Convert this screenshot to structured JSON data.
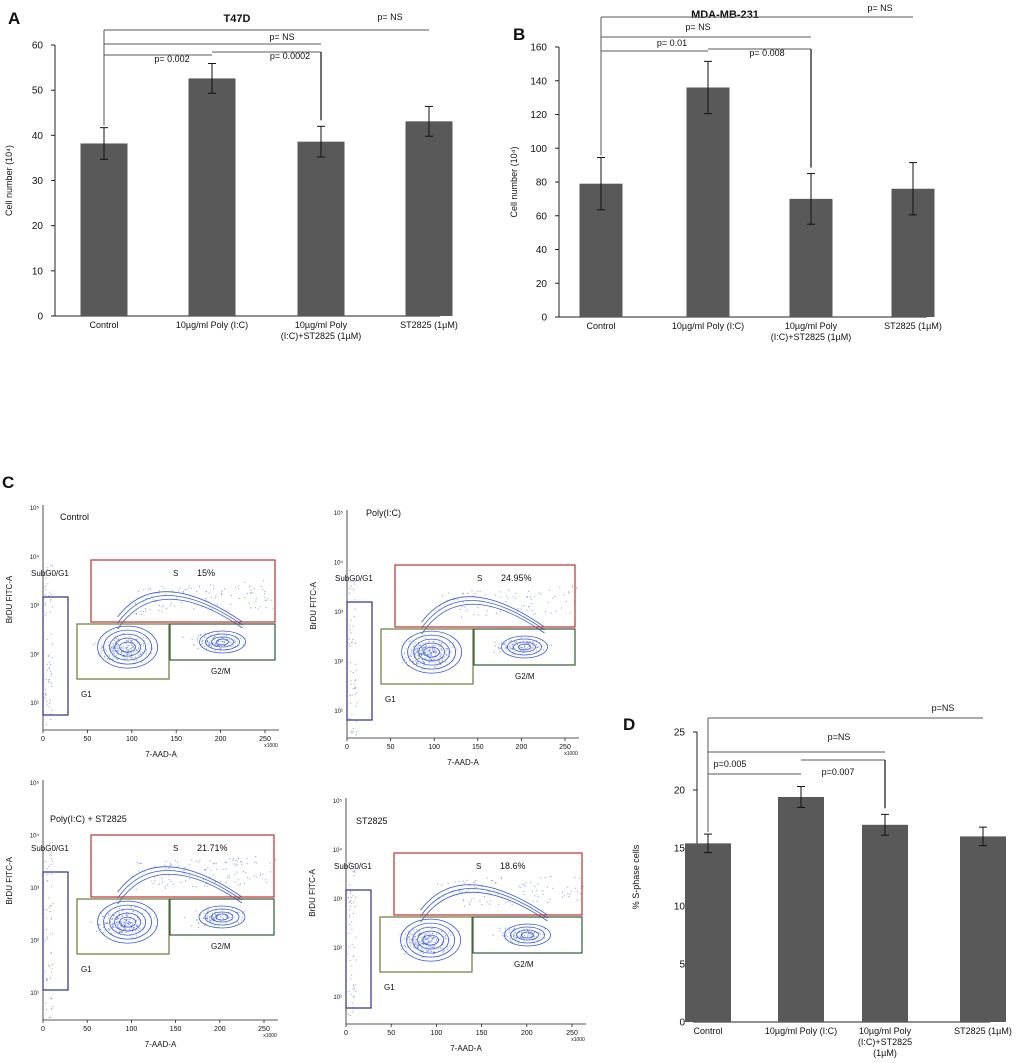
{
  "colors": {
    "bar": "#595959",
    "axis": "#222222",
    "bracket": "#5a5a5a",
    "density": "#3a5ad6",
    "gate_s": "#c03030",
    "gate_sub": "#2a2f8a",
    "gate_g1": "#6b7a3a",
    "gate_g2m": "#2f5a3a"
  },
  "chart_data": [
    {
      "id": "A",
      "panel_label": "A",
      "type": "bar",
      "title": "T47D",
      "ylabel": "Cell number (10⁴)",
      "xlabel": "",
      "ylim": [
        0,
        60
      ],
      "yticks": [
        "0",
        "10",
        "20",
        "30",
        "40",
        "50",
        "60"
      ],
      "categories": [
        [
          "Control"
        ],
        [
          "10µg/ml Poly (I:C)"
        ],
        [
          "10µg/ml Poly",
          "(I:C)+ST2825 (1µM)"
        ],
        [
          "ST2825 (1µM)"
        ]
      ],
      "values": [
        38.2,
        52.6,
        38.6,
        43.1
      ],
      "errors": [
        3.5,
        3.3,
        3.4,
        3.3
      ],
      "comparisons": [
        {
          "from": 0,
          "to": 1,
          "label": "p= 0.002"
        },
        {
          "from": 1,
          "to": 2,
          "label": "p= 0.0002"
        },
        {
          "from": 0,
          "to": 2,
          "label": "p= NS"
        },
        {
          "from": 0,
          "to": 3,
          "label": "p= NS"
        }
      ]
    },
    {
      "id": "B",
      "panel_label": "B",
      "type": "bar",
      "title": "MDA-MB-231",
      "ylabel": "Cell number (10⁴)",
      "xlabel": "",
      "ylim": [
        0,
        160
      ],
      "yticks": [
        "0",
        "20",
        "40",
        "60",
        "80",
        "100",
        "120",
        "140",
        "160"
      ],
      "categories": [
        [
          "Control"
        ],
        [
          "10µg/ml Poly (I:C)"
        ],
        [
          "10µg/ml Poly",
          "(I:C)+ST2825 (1µM)"
        ],
        [
          "ST2825 (1µM)"
        ]
      ],
      "values": [
        79,
        136,
        70,
        76
      ],
      "errors": [
        15.5,
        15.5,
        15,
        15.5
      ],
      "comparisons": [
        {
          "from": 0,
          "to": 1,
          "label": "p= 0.01"
        },
        {
          "from": 1,
          "to": 2,
          "label": "p= 0.008"
        },
        {
          "from": 0,
          "to": 2,
          "label": "p= NS"
        },
        {
          "from": 0,
          "to": 3,
          "label": "p= NS"
        }
      ]
    },
    {
      "id": "D",
      "panel_label": "D",
      "type": "bar",
      "title": "",
      "ylabel": "% S-phase cells",
      "xlabel": "",
      "ylim": [
        0,
        25
      ],
      "yticks": [
        "0",
        "5",
        "10",
        "15",
        "20",
        "25"
      ],
      "categories": [
        [
          "Control"
        ],
        [
          "10µg/ml Poly (I:C)"
        ],
        [
          "10µg/ml Poly",
          "(I:C)+ST2825",
          "(1µM)"
        ],
        [
          "ST2825 (1µM)"
        ]
      ],
      "values": [
        15.4,
        19.4,
        17.0,
        16.0
      ],
      "errors": [
        0.8,
        0.9,
        0.9,
        0.8
      ],
      "comparisons": [
        {
          "from": 0,
          "to": 1,
          "label": "p=0.005"
        },
        {
          "from": 1,
          "to": 2,
          "label": "p=0.007"
        },
        {
          "from": 0,
          "to": 2,
          "label": "p=NS"
        },
        {
          "from": 0,
          "to": 3,
          "label": "p=NS"
        }
      ]
    },
    {
      "id": "C",
      "panel_label": "C",
      "type": "scatter",
      "ylabel": "BrDU FITC-A",
      "xlabel": "7-AAD-A",
      "x_unit": "x1000",
      "xticks": [
        "0",
        "50",
        "100",
        "150",
        "200",
        "250"
      ],
      "yticks": [
        "10¹",
        "10²",
        "10³",
        "10⁴",
        "10⁵"
      ],
      "gates": {
        "subg0g1": "SubG0/G1",
        "s": "S",
        "g1": "G1",
        "g2m": "G2/M"
      },
      "plots": [
        {
          "title": "Control",
          "s_percent": "15%"
        },
        {
          "title": "Poly(I:C)",
          "s_percent": "24.95%"
        },
        {
          "title": "Poly(I:C) + ST2825",
          "s_percent": "21.71%"
        },
        {
          "title": "ST2825",
          "s_percent": "18.6%"
        }
      ]
    }
  ]
}
